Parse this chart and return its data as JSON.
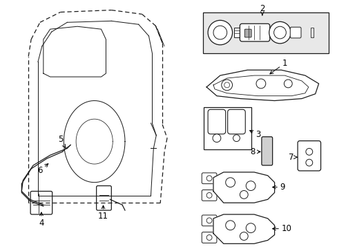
{
  "background_color": "#ffffff",
  "fig_width": 4.89,
  "fig_height": 3.6,
  "dpi": 100,
  "line_color": "#1a1a1a",
  "door": {
    "outer_dashed": true,
    "inner_solid": true
  }
}
